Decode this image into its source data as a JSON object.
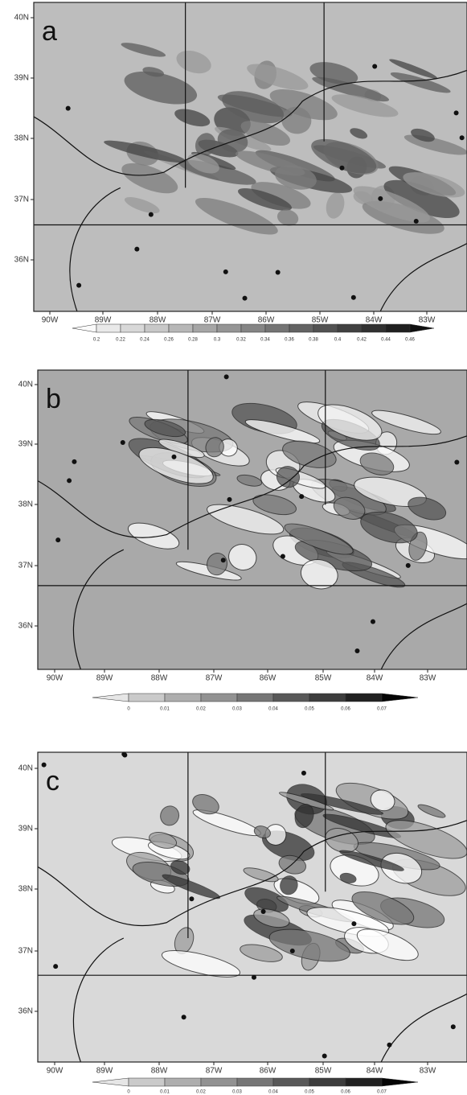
{
  "panels": [
    {
      "label": "a",
      "lat_labels": [
        "40N",
        "39N",
        "38N",
        "37N",
        "36N"
      ],
      "lon_labels": [
        "90W",
        "89W",
        "88W",
        "87W",
        "86W",
        "85W",
        "84W",
        "83W"
      ],
      "colorbar_labels": [
        "0.2",
        "0.22",
        "0.24",
        "0.26",
        "0.28",
        "0.3",
        "0.32",
        "0.34",
        "0.36",
        "0.38",
        "0.4",
        "0.42",
        "0.44",
        "0.46"
      ]
    },
    {
      "label": "b",
      "lat_labels": [
        "40N",
        "39N",
        "38N",
        "37N",
        "36N"
      ],
      "lon_labels": [
        "90W",
        "89W",
        "88W",
        "87W",
        "86W",
        "85W",
        "84W",
        "83W"
      ],
      "colorbar_labels": [
        "0",
        "0.01",
        "0.02",
        "0.03",
        "0.04",
        "0.05",
        "0.06",
        "0.07"
      ]
    },
    {
      "label": "c",
      "lat_labels": [
        "40N",
        "39N",
        "38N",
        "37N",
        "36N"
      ],
      "lon_labels": [
        "90W",
        "89W",
        "88W",
        "87W",
        "86W",
        "85W",
        "84W",
        "83W"
      ],
      "colorbar_labels": [
        "0",
        "0.01",
        "0.02",
        "0.03",
        "0.04",
        "0.05",
        "0.06",
        "0.07"
      ]
    }
  ]
}
